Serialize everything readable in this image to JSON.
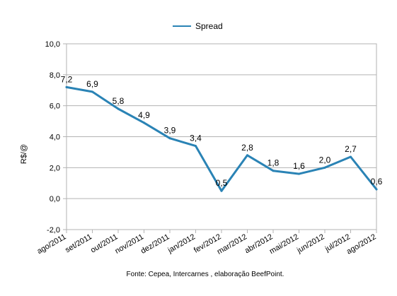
{
  "chart_data": {
    "type": "line",
    "title": "",
    "xlabel": "",
    "ylabel": "R$/@",
    "ylim": [
      -2,
      10
    ],
    "yticks": [
      -2,
      0,
      2,
      4,
      6,
      8,
      10
    ],
    "ytick_labels": [
      "-2,0",
      "0,0",
      "2,0",
      "4,0",
      "6,0",
      "8,0",
      "10,0"
    ],
    "grid": true,
    "legend": "top-center",
    "categories": [
      "ago/2011",
      "set/2011",
      "out/2011",
      "nov/2011",
      "dez/2011",
      "jan/2012",
      "fev/2012",
      "mar/2012",
      "abr/2012",
      "mai/2012",
      "jun/2012",
      "jul/2012",
      "ago/2012"
    ],
    "series": [
      {
        "name": "Spread",
        "values": [
          7.2,
          6.9,
          5.8,
          4.9,
          3.9,
          3.4,
          0.5,
          2.8,
          1.8,
          1.6,
          2.0,
          2.7,
          0.6
        ],
        "labels": [
          "7,2",
          "6,9",
          "5,8",
          "4,9",
          "3,9",
          "3,4",
          "0,5",
          "2,8",
          "1,8",
          "1,6",
          "2,0",
          "2,7",
          "0,6"
        ],
        "color": "#2a83b5"
      }
    ],
    "source_note": "Fonte: Cepea, Intercarnes , elaboração BeefPoint."
  }
}
